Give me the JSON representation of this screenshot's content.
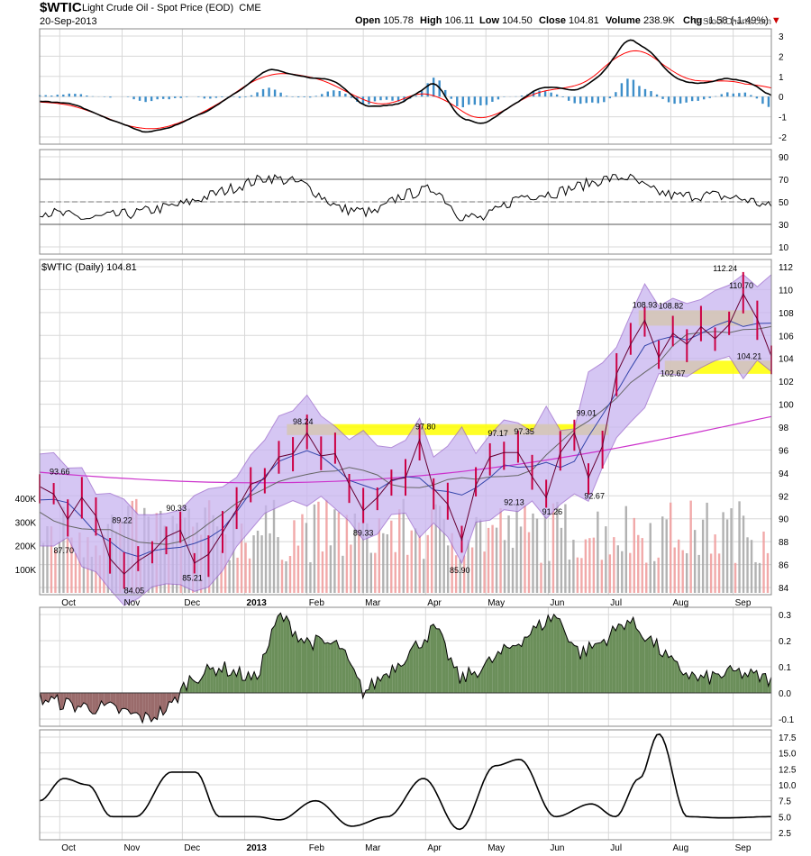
{
  "header": {
    "symbol": "$WTIC",
    "description": "Light Crude Oil - Spot Price (EOD)",
    "exchange": "CME",
    "date": "20-Sep-2013",
    "open_label": "Open",
    "open": "105.78",
    "high_label": "High",
    "high": "106.11",
    "low_label": "Low",
    "low": "104.50",
    "close_label": "Close",
    "close": "104.81",
    "volume_label": "Volume",
    "volume": "238.9K",
    "chg_label": "Chg",
    "chg": "-1.58 (-1.49%)",
    "brand": "© StockCharts.com"
  },
  "colors": {
    "macd_line": "#000000",
    "signal_line": "#ff0000",
    "histogram": "#3d8ec9",
    "bollinger_fill": "#c8b4f0",
    "bollinger_line": "#9966cc",
    "ma_long": "#cc33cc",
    "ma_mid": "#666666",
    "ma_short": "#cc0044",
    "resistance_band": "#ffff00",
    "volume_up": "#aaaaaa",
    "volume_down": "#f0a0a0",
    "area_positive": "#6b8f5a",
    "area_negative": "#9a6b6b",
    "grid": "#d8d8d8"
  },
  "x_axis": {
    "months": [
      "Oct",
      "Nov",
      "Dec",
      "2013",
      "Feb",
      "Mar",
      "Apr",
      "May",
      "Jun",
      "Jul",
      "Aug",
      "Sep"
    ]
  },
  "chart_data": [
    {
      "type": "line",
      "panel": "macd",
      "ylim": [
        -2,
        3
      ],
      "y_ticks": [
        "3",
        "2",
        "1",
        "0",
        "-1",
        "-2"
      ],
      "series": []
    },
    {
      "type": "line",
      "panel": "rsi",
      "ylim": [
        10,
        90
      ],
      "y_ticks": [
        "90",
        "70",
        "50",
        "30",
        "10"
      ],
      "series": []
    },
    {
      "type": "line",
      "panel": "price",
      "title": "$WTIC (Daily) 104.81",
      "ylim": [
        84,
        112
      ],
      "y_ticks": [
        "112",
        "110",
        "108",
        "106",
        "104",
        "102",
        "100",
        "98",
        "96",
        "94",
        "92",
        "90",
        "88",
        "86",
        "84"
      ],
      "volume_ticks": [
        "400K",
        "300K",
        "200K",
        "100K"
      ],
      "annotations": [
        {
          "label": "93.66",
          "date": "2012-10-01",
          "value": 93.66
        },
        {
          "label": "87.70",
          "date": "2012-10-03",
          "value": 87.7
        },
        {
          "label": "89.22",
          "date": "2012-11-01",
          "value": 89.22
        },
        {
          "label": "84.05",
          "date": "2012-11-07",
          "value": 84.05
        },
        {
          "label": "90.33",
          "date": "2012-11-28",
          "value": 90.33
        },
        {
          "label": "85.21",
          "date": "2012-12-06",
          "value": 85.21
        },
        {
          "label": "98.24",
          "date": "2013-01-30",
          "value": 98.24
        },
        {
          "label": "89.33",
          "date": "2013-03-01",
          "value": 89.33
        },
        {
          "label": "97.80",
          "date": "2013-04-01",
          "value": 97.8
        },
        {
          "label": "85.90",
          "date": "2013-04-18",
          "value": 85.9
        },
        {
          "label": "97.17",
          "date": "2013-05-07",
          "value": 97.17
        },
        {
          "label": "92.13",
          "date": "2013-05-15",
          "value": 92.13
        },
        {
          "label": "97.35",
          "date": "2013-05-20",
          "value": 97.35
        },
        {
          "label": "91.26",
          "date": "2013-06-03",
          "value": 91.26
        },
        {
          "label": "92.67",
          "date": "2013-06-24",
          "value": 92.67
        },
        {
          "label": "99.01",
          "date": "2013-06-20",
          "value": 99.01
        },
        {
          "label": "108.93",
          "date": "2013-07-19",
          "value": 108.93
        },
        {
          "label": "108.82",
          "date": "2013-08-01",
          "value": 108.82
        },
        {
          "label": "102.67",
          "date": "2013-08-02",
          "value": 102.67
        },
        {
          "label": "112.24",
          "date": "2013-08-28",
          "value": 112.24
        },
        {
          "label": "110.70",
          "date": "2013-09-05",
          "value": 110.7
        },
        {
          "label": "104.21",
          "date": "2013-09-09",
          "value": 104.21
        }
      ],
      "bands": [
        {
          "x0": "2013-01-22",
          "x1": "2013-07-01",
          "y0": 97.6,
          "y1": 98.6
        },
        {
          "x0": "2013-07-16",
          "x1": "2013-09-11",
          "y0": 107.6,
          "y1": 109.0
        },
        {
          "x0": "2013-07-29",
          "x1": "2013-09-20",
          "y0": 103.2,
          "y1": 104.4
        }
      ],
      "series": [
        {
          "values": [
            {
              "x": "2012-09-21",
              "y": 92.9
            },
            {
              "x": "2012-09-28",
              "y": 92.2
            },
            {
              "x": "2012-10-05",
              "y": 89.9
            },
            {
              "x": "2012-10-12",
              "y": 91.9
            },
            {
              "x": "2012-10-19",
              "y": 90.2
            },
            {
              "x": "2012-10-26",
              "y": 86.3
            },
            {
              "x": "2012-11-02",
              "y": 84.9
            },
            {
              "x": "2012-11-09",
              "y": 86.1
            },
            {
              "x": "2012-11-16",
              "y": 86.9
            },
            {
              "x": "2012-11-23",
              "y": 88.3
            },
            {
              "x": "2012-11-30",
              "y": 88.9
            },
            {
              "x": "2012-12-07",
              "y": 85.9
            },
            {
              "x": "2012-12-14",
              "y": 86.7
            },
            {
              "x": "2012-12-21",
              "y": 88.7
            },
            {
              "x": "2012-12-28",
              "y": 90.8
            },
            {
              "x": "2013-01-04",
              "y": 93.1
            },
            {
              "x": "2013-01-11",
              "y": 93.6
            },
            {
              "x": "2013-01-18",
              "y": 95.6
            },
            {
              "x": "2013-01-25",
              "y": 95.9
            },
            {
              "x": "2013-02-01",
              "y": 97.8
            },
            {
              "x": "2013-02-08",
              "y": 95.7
            },
            {
              "x": "2013-02-15",
              "y": 95.9
            },
            {
              "x": "2013-02-22",
              "y": 93.1
            },
            {
              "x": "2013-03-01",
              "y": 90.7
            },
            {
              "x": "2013-03-08",
              "y": 91.9
            },
            {
              "x": "2013-03-15",
              "y": 93.5
            },
            {
              "x": "2013-03-22",
              "y": 93.7
            },
            {
              "x": "2013-03-29",
              "y": 97.2
            },
            {
              "x": "2013-04-05",
              "y": 92.7
            },
            {
              "x": "2013-04-12",
              "y": 91.3
            },
            {
              "x": "2013-04-19",
              "y": 88.0
            },
            {
              "x": "2013-04-26",
              "y": 93.0
            },
            {
              "x": "2013-05-03",
              "y": 95.6
            },
            {
              "x": "2013-05-10",
              "y": 96.0
            },
            {
              "x": "2013-05-17",
              "y": 96.0
            },
            {
              "x": "2013-05-24",
              "y": 93.8
            },
            {
              "x": "2013-05-31",
              "y": 91.9
            },
            {
              "x": "2013-06-07",
              "y": 96.0
            },
            {
              "x": "2013-06-14",
              "y": 97.8
            },
            {
              "x": "2013-06-21",
              "y": 93.7
            },
            {
              "x": "2013-06-28",
              "y": 96.6
            },
            {
              "x": "2013-07-05",
              "y": 103.2
            },
            {
              "x": "2013-07-12",
              "y": 105.9
            },
            {
              "x": "2013-07-19",
              "y": 108.1
            },
            {
              "x": "2013-07-26",
              "y": 104.7
            },
            {
              "x": "2013-08-02",
              "y": 106.9
            },
            {
              "x": "2013-08-09",
              "y": 105.9
            },
            {
              "x": "2013-08-16",
              "y": 107.5
            },
            {
              "x": "2013-08-23",
              "y": 106.4
            },
            {
              "x": "2013-08-30",
              "y": 107.7
            },
            {
              "x": "2013-09-06",
              "y": 110.5
            },
            {
              "x": "2013-09-13",
              "y": 108.2
            },
            {
              "x": "2013-09-20",
              "y": 104.8
            }
          ]
        }
      ]
    },
    {
      "type": "area",
      "panel": "indicator",
      "ylim": [
        -0.1,
        0.3
      ],
      "y_ticks": [
        "0.3",
        "0.2",
        "0.1",
        "0.0",
        "-0.1"
      ],
      "series": []
    },
    {
      "type": "line",
      "panel": "volatility",
      "ylim": [
        2.5,
        17.5
      ],
      "y_ticks": [
        "17.5",
        "15.0",
        "12.5",
        "10.0",
        "7.5",
        "5.0",
        "2.5"
      ],
      "series": []
    }
  ]
}
